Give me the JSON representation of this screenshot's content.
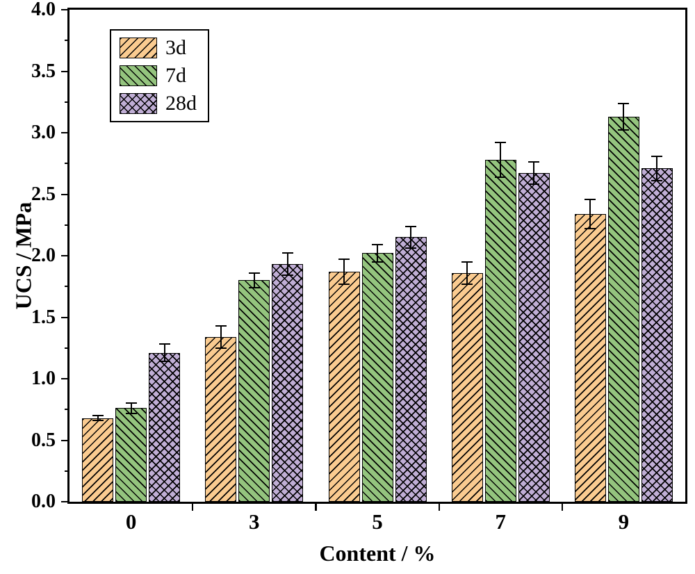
{
  "chart_data": {
    "type": "bar",
    "title": "",
    "xlabel": "Content / %",
    "ylabel": "UCS / MPa",
    "categories": [
      "0",
      "3",
      "5",
      "7",
      "9"
    ],
    "series": [
      {
        "name": "3d",
        "color": "#FACB90",
        "hatch": "forward-diagonal",
        "values": [
          0.68,
          1.34,
          1.87,
          1.86,
          2.34
        ],
        "errors": [
          0.02,
          0.09,
          0.1,
          0.09,
          0.12
        ]
      },
      {
        "name": "7d",
        "color": "#94C47E",
        "hatch": "back-diagonal",
        "values": [
          0.76,
          1.8,
          2.02,
          2.78,
          3.13
        ],
        "errors": [
          0.04,
          0.06,
          0.07,
          0.14,
          0.11
        ]
      },
      {
        "name": "28d",
        "color": "#C0AED5",
        "hatch": "cross",
        "values": [
          1.21,
          1.93,
          2.15,
          2.67,
          2.71
        ],
        "errors": [
          0.07,
          0.09,
          0.09,
          0.09,
          0.1
        ]
      }
    ],
    "ylim": [
      0.0,
      4.0
    ],
    "ytick_step": 0.5,
    "yticks": [
      "0.0",
      "0.5",
      "1.0",
      "1.5",
      "2.0",
      "2.5",
      "3.0",
      "3.5",
      "4.0"
    ],
    "legend_position": "top-left",
    "legend_entries": [
      "3d",
      "7d",
      "28d"
    ],
    "grid": false,
    "error_bars": true
  }
}
